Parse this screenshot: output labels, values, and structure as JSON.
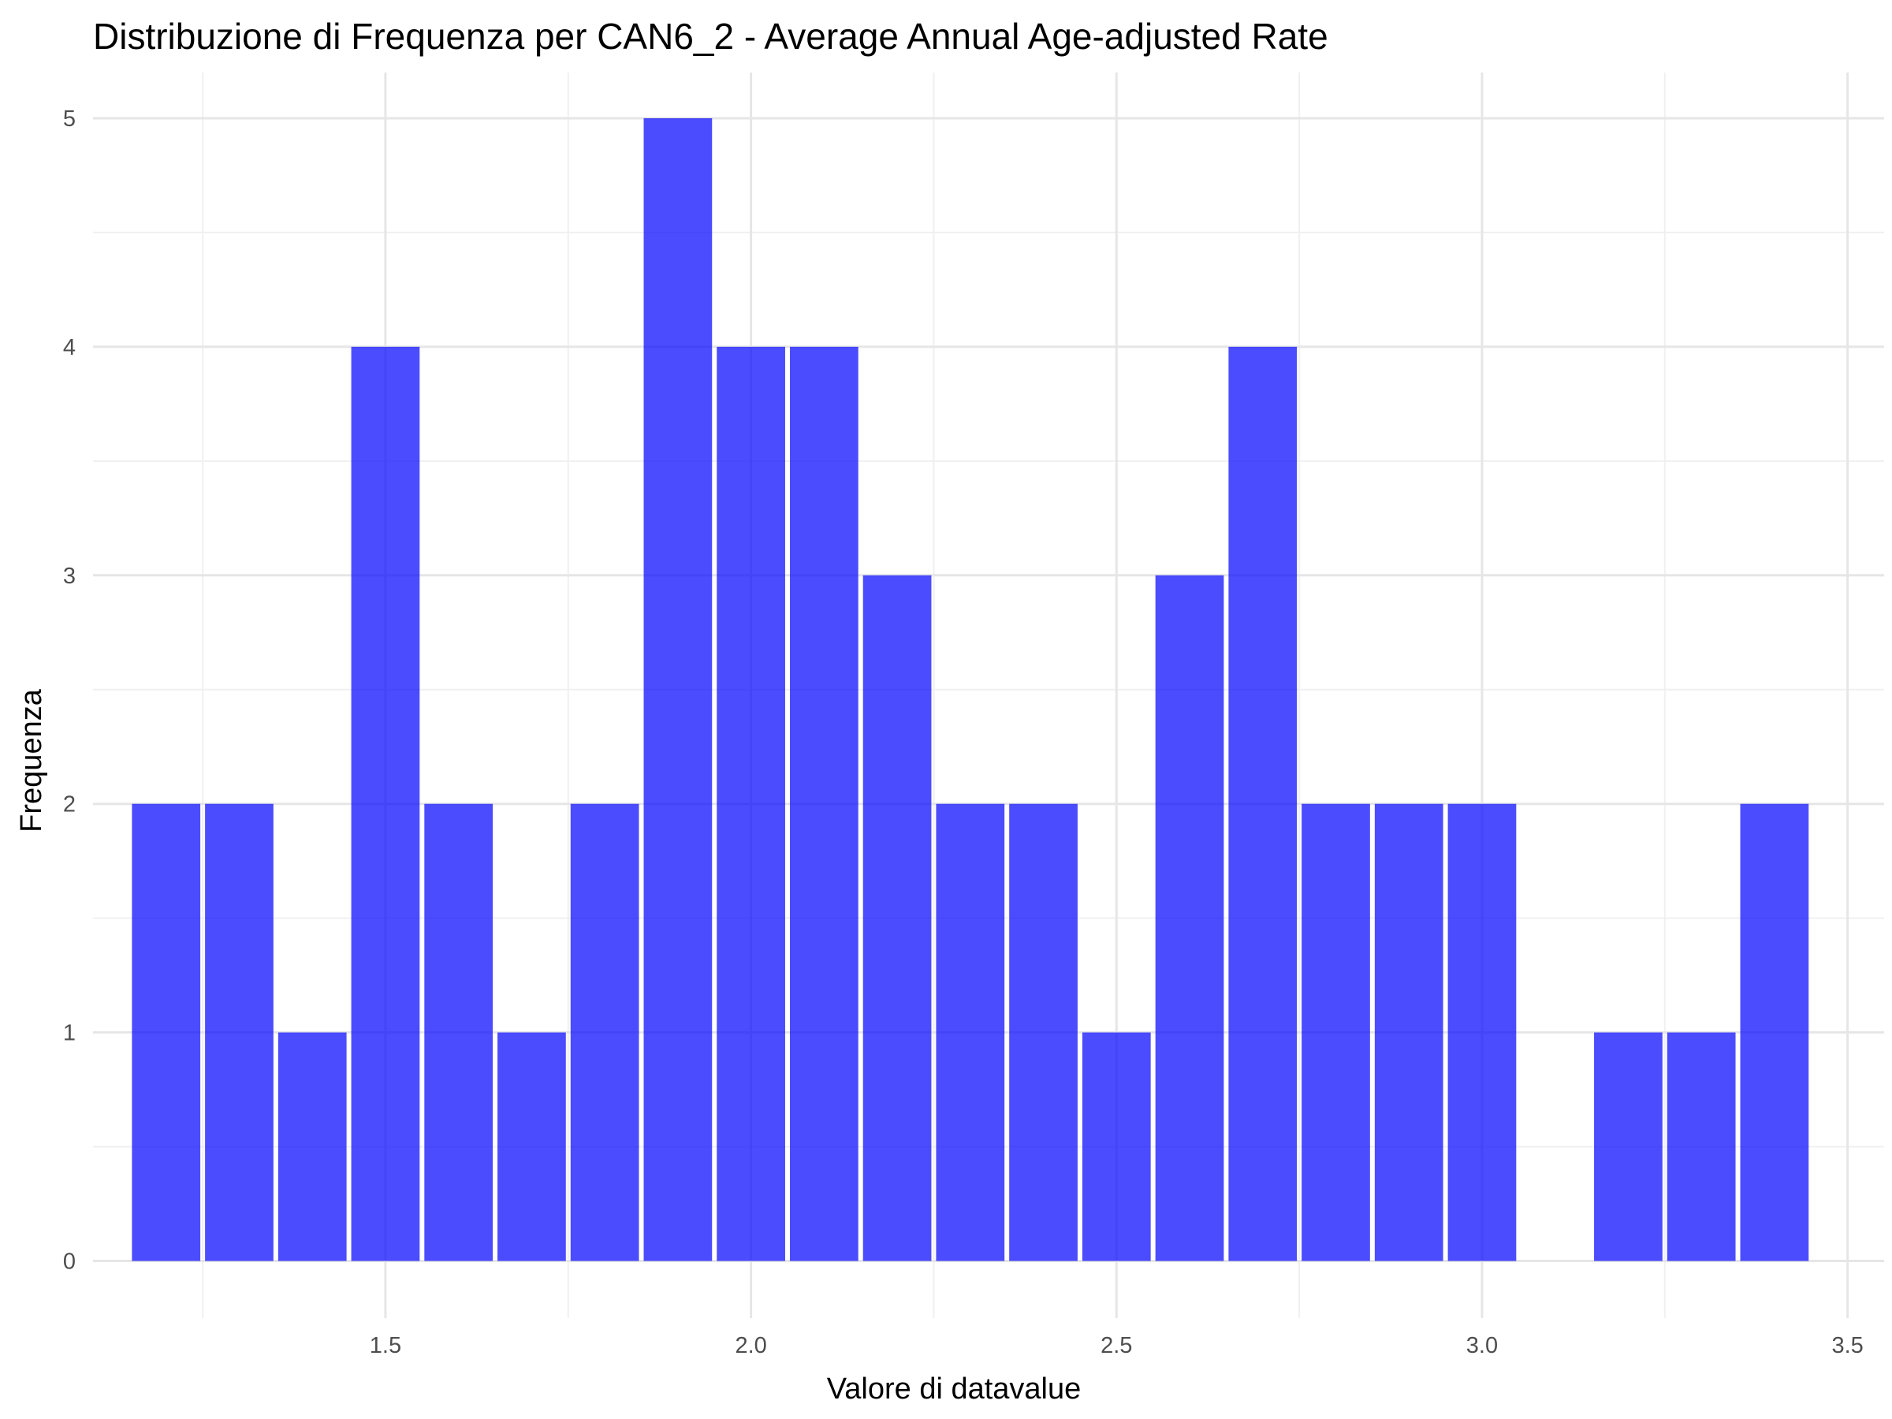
{
  "chart_data": {
    "type": "bar",
    "title": "Distribuzione di Frequenza per CAN6_2 - Average Annual Age-adjusted Rate",
    "xlabel": "Valore di datavalue",
    "ylabel": "Frequenza",
    "bin_width": 0.1,
    "x": [
      1.2,
      1.3,
      1.4,
      1.5,
      1.6,
      1.7,
      1.8,
      1.9,
      2.0,
      2.1,
      2.2,
      2.3,
      2.4,
      2.5,
      2.6,
      2.7,
      2.8,
      2.9,
      3.0,
      3.1,
      3.2,
      3.3,
      3.4
    ],
    "values": [
      2,
      2,
      1,
      4,
      2,
      1,
      2,
      5,
      4,
      4,
      3,
      2,
      2,
      1,
      3,
      4,
      2,
      2,
      2,
      0,
      1,
      1,
      2
    ],
    "xlim": [
      1.1,
      3.55
    ],
    "ylim": [
      -0.25,
      5.2
    ],
    "x_ticks": [
      1.5,
      2.0,
      2.5,
      3.0,
      3.5
    ],
    "x_tick_labels": [
      "1.5",
      "2.0",
      "2.5",
      "3.0",
      "3.5"
    ],
    "y_ticks": [
      0,
      1,
      2,
      3,
      4,
      5
    ],
    "y_tick_labels": [
      "0",
      "1",
      "2",
      "3",
      "4",
      "5"
    ],
    "x_minor_ticks": [
      1.25,
      1.75,
      2.25,
      2.75,
      3.25
    ],
    "y_minor_ticks": [
      0.5,
      1.5,
      2.5,
      3.5,
      4.5
    ],
    "grid": true,
    "legend": "none",
    "bar_color": "#0000ff"
  }
}
